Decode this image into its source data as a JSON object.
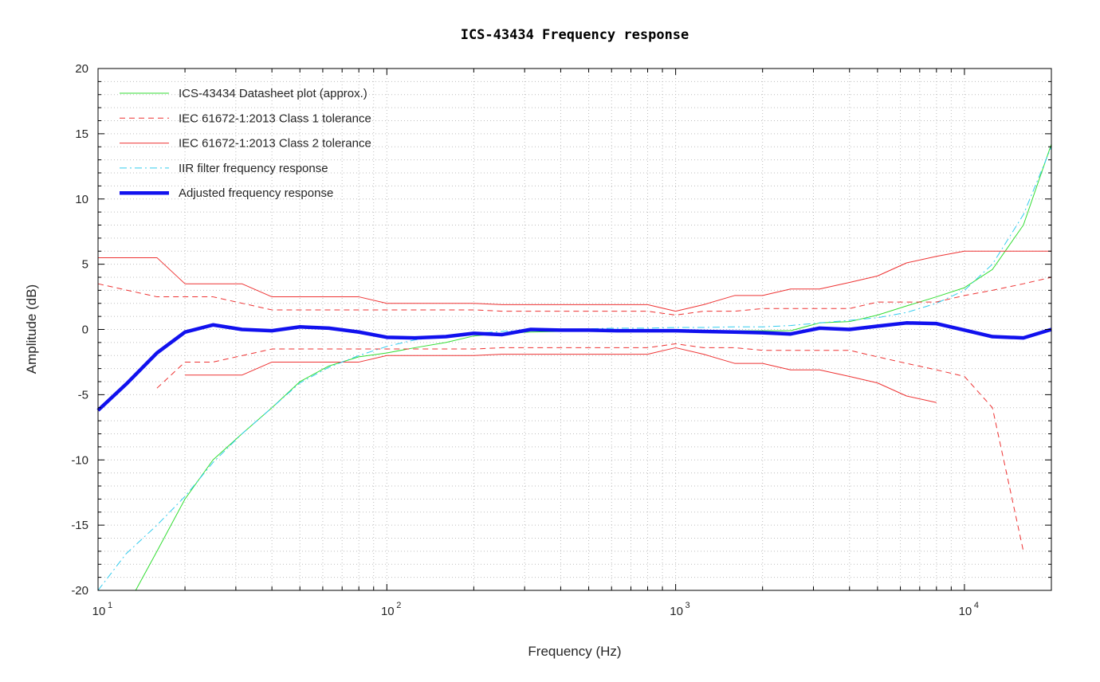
{
  "chart_data": {
    "type": "line",
    "title": "ICS-43434 Frequency response",
    "xlabel": "Frequency (Hz)",
    "ylabel": "Amplitude (dB)",
    "xscale": "log",
    "xlim": [
      10,
      20000
    ],
    "ylim": [
      -20,
      20
    ],
    "yticks": [
      -20,
      -15,
      -10,
      -5,
      0,
      5,
      10,
      15,
      20
    ],
    "xticks": [
      {
        "base": "10",
        "exp": "1",
        "value": 10
      },
      {
        "base": "10",
        "exp": "2",
        "value": 100
      },
      {
        "base": "10",
        "exp": "3",
        "value": 1000
      },
      {
        "base": "10",
        "exp": "4",
        "value": 10000
      }
    ],
    "grid": true,
    "legend_position": "top-left",
    "series": [
      {
        "name": "ICS-43434 Datasheet plot (approx.)",
        "color": "#33dd33",
        "style": "solid",
        "width": 1,
        "points": [
          [
            13.5,
            -20
          ],
          [
            16,
            -17
          ],
          [
            20,
            -13
          ],
          [
            25,
            -10
          ],
          [
            31.5,
            -8
          ],
          [
            40,
            -6
          ],
          [
            50,
            -4
          ],
          [
            63,
            -2.8
          ],
          [
            80,
            -2.1
          ],
          [
            100,
            -1.8
          ],
          [
            125,
            -1.4
          ],
          [
            160,
            -1.0
          ],
          [
            200,
            -0.5
          ],
          [
            250,
            -0.3
          ],
          [
            315,
            -0.2
          ],
          [
            400,
            -0.15
          ],
          [
            500,
            -0.1
          ],
          [
            630,
            -0.1
          ],
          [
            800,
            -0.1
          ],
          [
            1000,
            -0.1
          ],
          [
            1250,
            -0.1
          ],
          [
            1600,
            -0.1
          ],
          [
            2000,
            -0.1
          ],
          [
            2500,
            -0.1
          ],
          [
            3150,
            0.5
          ],
          [
            4000,
            0.6
          ],
          [
            5000,
            1.1
          ],
          [
            6300,
            1.8
          ],
          [
            8000,
            2.5
          ],
          [
            10000,
            3.2
          ],
          [
            12500,
            4.6
          ],
          [
            16000,
            8.0
          ],
          [
            20000,
            14.2
          ]
        ]
      },
      {
        "name": "IEC 61672-1:2013 Class 1 tolerance",
        "color": "#ee3333",
        "style": "dashed",
        "width": 1,
        "points": [
          [
            10,
            3.5
          ],
          [
            16,
            2.5
          ],
          [
            20,
            2.5
          ],
          [
            25,
            2.5
          ],
          [
            40,
            1.5
          ],
          [
            80,
            1.5
          ],
          [
            100,
            1.5
          ],
          [
            200,
            1.5
          ],
          [
            250,
            1.4
          ],
          [
            800,
            1.4
          ],
          [
            1000,
            1.1
          ],
          [
            1250,
            1.4
          ],
          [
            1600,
            1.4
          ],
          [
            2000,
            1.6
          ],
          [
            4000,
            1.6
          ],
          [
            5000,
            2.1
          ],
          [
            6300,
            2.1
          ],
          [
            8000,
            2.1
          ],
          [
            10000,
            2.6
          ],
          [
            12500,
            3.0
          ],
          [
            16000,
            3.5
          ],
          [
            20000,
            4.0
          ]
        ],
        "points_lower": [
          [
            16,
            -4.5
          ],
          [
            20,
            -2.5
          ],
          [
            25,
            -2.5
          ],
          [
            40,
            -1.5
          ],
          [
            80,
            -1.5
          ],
          [
            100,
            -1.5
          ],
          [
            200,
            -1.5
          ],
          [
            250,
            -1.4
          ],
          [
            800,
            -1.4
          ],
          [
            1000,
            -1.1
          ],
          [
            1250,
            -1.4
          ],
          [
            1600,
            -1.4
          ],
          [
            2000,
            -1.6
          ],
          [
            4000,
            -1.6
          ],
          [
            5000,
            -2.1
          ],
          [
            6300,
            -2.6
          ],
          [
            8000,
            -3.1
          ],
          [
            10000,
            -3.6
          ],
          [
            12500,
            -6.0
          ],
          [
            16000,
            -17.0
          ]
        ]
      },
      {
        "name": "IEC 61672-1:2013 Class 2 tolerance",
        "color": "#ee3333",
        "style": "solid",
        "width": 1,
        "points": [
          [
            10,
            5.5
          ],
          [
            16,
            5.5
          ],
          [
            20,
            3.5
          ],
          [
            31.5,
            3.5
          ],
          [
            40,
            2.5
          ],
          [
            80,
            2.5
          ],
          [
            100,
            2.0
          ],
          [
            200,
            2.0
          ],
          [
            250,
            1.9
          ],
          [
            800,
            1.9
          ],
          [
            1000,
            1.4
          ],
          [
            1250,
            1.9
          ],
          [
            1600,
            2.6
          ],
          [
            2000,
            2.6
          ],
          [
            2500,
            3.1
          ],
          [
            3150,
            3.1
          ],
          [
            4000,
            3.6
          ],
          [
            5000,
            4.1
          ],
          [
            6300,
            5.1
          ],
          [
            8000,
            5.6
          ],
          [
            10000,
            6.0
          ],
          [
            20000,
            6.0
          ]
        ],
        "points_lower": [
          [
            20,
            -3.5
          ],
          [
            31.5,
            -3.5
          ],
          [
            40,
            -2.5
          ],
          [
            80,
            -2.5
          ],
          [
            100,
            -2.0
          ],
          [
            200,
            -2.0
          ],
          [
            250,
            -1.9
          ],
          [
            800,
            -1.9
          ],
          [
            1000,
            -1.4
          ],
          [
            1250,
            -1.9
          ],
          [
            1600,
            -2.6
          ],
          [
            2000,
            -2.6
          ],
          [
            2500,
            -3.1
          ],
          [
            3150,
            -3.1
          ],
          [
            4000,
            -3.6
          ],
          [
            5000,
            -4.1
          ],
          [
            6300,
            -5.1
          ],
          [
            8000,
            -5.6
          ]
        ]
      },
      {
        "name": "IIR filter frequency response",
        "color": "#33ccee",
        "style": "dashdot",
        "width": 1,
        "points": [
          [
            10,
            -20
          ],
          [
            12.5,
            -17.2
          ],
          [
            16,
            -15.0
          ],
          [
            20,
            -12.8
          ],
          [
            25,
            -10.2
          ],
          [
            31.5,
            -8.0
          ],
          [
            40,
            -6.0
          ],
          [
            50,
            -4.1
          ],
          [
            63,
            -2.9
          ],
          [
            80,
            -2.0
          ],
          [
            100,
            -1.3
          ],
          [
            125,
            -0.8
          ],
          [
            160,
            -0.5
          ],
          [
            200,
            -0.3
          ],
          [
            250,
            -0.15
          ],
          [
            315,
            -0.05
          ],
          [
            400,
            0.0
          ],
          [
            500,
            0.05
          ],
          [
            630,
            0.1
          ],
          [
            800,
            0.1
          ],
          [
            1000,
            0.15
          ],
          [
            1250,
            0.15
          ],
          [
            1600,
            0.2
          ],
          [
            2000,
            0.2
          ],
          [
            2500,
            0.3
          ],
          [
            3150,
            0.5
          ],
          [
            4000,
            0.7
          ],
          [
            5000,
            0.9
          ],
          [
            6300,
            1.3
          ],
          [
            8000,
            2.0
          ],
          [
            10000,
            3.0
          ],
          [
            12500,
            5.0
          ],
          [
            16000,
            8.8
          ],
          [
            20000,
            14.0
          ]
        ]
      },
      {
        "name": "Adjusted frequency response",
        "color": "#1111ee",
        "style": "solid",
        "width": 4.5,
        "points": [
          [
            10,
            -6.2
          ],
          [
            12.5,
            -4.2
          ],
          [
            16,
            -1.8
          ],
          [
            20,
            -0.2
          ],
          [
            25,
            0.35
          ],
          [
            31.5,
            0.0
          ],
          [
            40,
            -0.1
          ],
          [
            50,
            0.2
          ],
          [
            63,
            0.1
          ],
          [
            80,
            -0.2
          ],
          [
            100,
            -0.6
          ],
          [
            125,
            -0.65
          ],
          [
            160,
            -0.55
          ],
          [
            200,
            -0.3
          ],
          [
            250,
            -0.4
          ],
          [
            315,
            0.0
          ],
          [
            400,
            -0.05
          ],
          [
            500,
            -0.05
          ],
          [
            630,
            -0.1
          ],
          [
            800,
            -0.1
          ],
          [
            1000,
            -0.1
          ],
          [
            1250,
            -0.15
          ],
          [
            1600,
            -0.2
          ],
          [
            2000,
            -0.25
          ],
          [
            2500,
            -0.35
          ],
          [
            3150,
            0.1
          ],
          [
            4000,
            0.0
          ],
          [
            5000,
            0.25
          ],
          [
            6300,
            0.5
          ],
          [
            8000,
            0.45
          ],
          [
            10000,
            -0.05
          ],
          [
            12500,
            -0.55
          ],
          [
            16000,
            -0.65
          ],
          [
            20000,
            0.0
          ]
        ]
      }
    ]
  }
}
